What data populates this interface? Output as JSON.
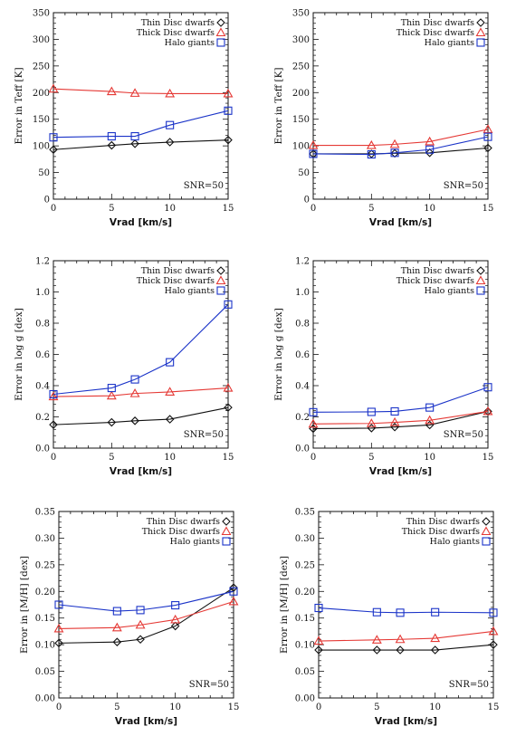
{
  "colors": {
    "thin": "#111111",
    "thick": "#e53935",
    "halo": "#1a33c8"
  },
  "chart_data": [
    {
      "type": "line",
      "ylabel": "Error in Teff [K]",
      "xlabel": "Vrad [km/s]",
      "xlim": [
        0,
        15
      ],
      "ylim": [
        0,
        350
      ],
      "xticks": [
        0,
        5,
        10,
        15
      ],
      "yticks": [
        0,
        50,
        100,
        150,
        200,
        250,
        300,
        350
      ],
      "annotation": "SNR=50",
      "legend_position": "top-right",
      "x": [
        0,
        5,
        7,
        10,
        15
      ],
      "series": [
        {
          "name": "Thin Disc dwarfs",
          "marker": "diamond",
          "color": "#111111",
          "values": [
            93,
            101,
            104,
            107,
            111
          ]
        },
        {
          "name": "Thick Disc dwarfs",
          "marker": "triangle",
          "color": "#e53935",
          "values": [
            207,
            202,
            199,
            198,
            198
          ]
        },
        {
          "name": "Halo giants",
          "marker": "square",
          "color": "#1a33c8",
          "values": [
            116,
            118,
            118,
            139,
            166
          ]
        }
      ]
    },
    {
      "type": "line",
      "ylabel": "Error in Teff [K]",
      "xlabel": "Vrad [km/s]",
      "xlim": [
        0,
        15
      ],
      "ylim": [
        0,
        350
      ],
      "xticks": [
        0,
        5,
        10,
        15
      ],
      "yticks": [
        0,
        50,
        100,
        150,
        200,
        250,
        300,
        350
      ],
      "annotation": "SNR=50",
      "legend_position": "top-right",
      "x": [
        0,
        5,
        7,
        10,
        15
      ],
      "series": [
        {
          "name": "Thin Disc dwarfs",
          "marker": "diamond",
          "color": "#111111",
          "values": [
            85,
            85,
            86,
            87,
            96
          ]
        },
        {
          "name": "Thick Disc dwarfs",
          "marker": "triangle",
          "color": "#e53935",
          "values": [
            101,
            101,
            103,
            108,
            131
          ]
        },
        {
          "name": "Halo giants",
          "marker": "square",
          "color": "#1a33c8",
          "values": [
            85,
            84,
            87,
            93,
            117
          ]
        }
      ]
    },
    {
      "type": "line",
      "ylabel": "Error in log g [dex]",
      "xlabel": "Vrad [km/s]",
      "xlim": [
        0,
        15
      ],
      "ylim": [
        0,
        1.2
      ],
      "xticks": [
        0,
        5,
        10,
        15
      ],
      "yticks": [
        0.0,
        0.2,
        0.4,
        0.6,
        0.8,
        1.0,
        1.2
      ],
      "yticklabels": [
        "0.0",
        "0.2",
        "0.4",
        "0.6",
        "0.8",
        "1.0",
        "1.2"
      ],
      "annotation": "SNR=50",
      "legend_position": "top-right",
      "x": [
        0,
        5,
        7,
        10,
        15
      ],
      "series": [
        {
          "name": "Thin Disc dwarfs",
          "marker": "diamond",
          "color": "#111111",
          "values": [
            0.15,
            0.165,
            0.175,
            0.185,
            0.26
          ]
        },
        {
          "name": "Thick Disc dwarfs",
          "marker": "triangle",
          "color": "#e53935",
          "values": [
            0.33,
            0.335,
            0.35,
            0.36,
            0.385
          ]
        },
        {
          "name": "Halo giants",
          "marker": "square",
          "color": "#1a33c8",
          "values": [
            0.345,
            0.385,
            0.44,
            0.55,
            0.92
          ]
        }
      ]
    },
    {
      "type": "line",
      "ylabel": "Error in log g [dex]",
      "xlabel": "Vrad [km/s]",
      "xlim": [
        0,
        15
      ],
      "ylim": [
        0,
        1.2
      ],
      "xticks": [
        0,
        5,
        10,
        15
      ],
      "yticks": [
        0.0,
        0.2,
        0.4,
        0.6,
        0.8,
        1.0,
        1.2
      ],
      "yticklabels": [
        "0.0",
        "0.2",
        "0.4",
        "0.6",
        "0.8",
        "1.0",
        "1.2"
      ],
      "annotation": "SNR=50",
      "legend_position": "top-right",
      "x": [
        0,
        5,
        7,
        10,
        15
      ],
      "series": [
        {
          "name": "Thin Disc dwarfs",
          "marker": "diamond",
          "color": "#111111",
          "values": [
            0.125,
            0.128,
            0.135,
            0.148,
            0.235
          ]
        },
        {
          "name": "Thick Disc dwarfs",
          "marker": "triangle",
          "color": "#e53935",
          "values": [
            0.155,
            0.158,
            0.165,
            0.178,
            0.235
          ]
        },
        {
          "name": "Halo giants",
          "marker": "square",
          "color": "#1a33c8",
          "values": [
            0.23,
            0.232,
            0.235,
            0.26,
            0.39
          ]
        }
      ]
    },
    {
      "type": "line",
      "ylabel": "Error in [M/H] [dex]",
      "xlabel": "Vrad [km/s]",
      "xlim": [
        0,
        15
      ],
      "ylim": [
        0,
        0.35
      ],
      "xticks": [
        0,
        5,
        10,
        15
      ],
      "yticks": [
        0.0,
        0.05,
        0.1,
        0.15,
        0.2,
        0.25,
        0.3,
        0.35
      ],
      "yticklabels": [
        "0.00",
        "0.05",
        "0.10",
        "0.15",
        "0.20",
        "0.25",
        "0.30",
        "0.35"
      ],
      "annotation": "SNR=50",
      "legend_position": "top-right",
      "x": [
        0,
        5,
        7,
        10,
        15
      ],
      "series": [
        {
          "name": "Thin Disc dwarfs",
          "marker": "diamond",
          "color": "#111111",
          "values": [
            0.103,
            0.105,
            0.11,
            0.135,
            0.207
          ]
        },
        {
          "name": "Thick Disc dwarfs",
          "marker": "triangle",
          "color": "#e53935",
          "values": [
            0.13,
            0.132,
            0.137,
            0.147,
            0.181
          ]
        },
        {
          "name": "Halo giants",
          "marker": "square",
          "color": "#1a33c8",
          "values": [
            0.175,
            0.163,
            0.165,
            0.174,
            0.2
          ]
        }
      ]
    },
    {
      "type": "line",
      "ylabel": "Error in [M/H] [dex]",
      "xlabel": "Vrad [km/s]",
      "xlim": [
        0,
        15
      ],
      "ylim": [
        0,
        0.35
      ],
      "xticks": [
        0,
        5,
        10,
        15
      ],
      "yticks": [
        0.0,
        0.05,
        0.1,
        0.15,
        0.2,
        0.25,
        0.3,
        0.35
      ],
      "yticklabels": [
        "0.00",
        "0.05",
        "0.10",
        "0.15",
        "0.20",
        "0.25",
        "0.30",
        "0.35"
      ],
      "annotation": "SNR=50",
      "legend_position": "top-right",
      "x": [
        0,
        5,
        7,
        10,
        15
      ],
      "series": [
        {
          "name": "Thin Disc dwarfs",
          "marker": "diamond",
          "color": "#111111",
          "values": [
            0.09,
            0.09,
            0.09,
            0.09,
            0.1
          ]
        },
        {
          "name": "Thick Disc dwarfs",
          "marker": "triangle",
          "color": "#e53935",
          "values": [
            0.107,
            0.109,
            0.11,
            0.112,
            0.125
          ]
        },
        {
          "name": "Halo giants",
          "marker": "square",
          "color": "#1a33c8",
          "values": [
            0.169,
            0.161,
            0.16,
            0.161,
            0.16
          ]
        }
      ]
    }
  ]
}
